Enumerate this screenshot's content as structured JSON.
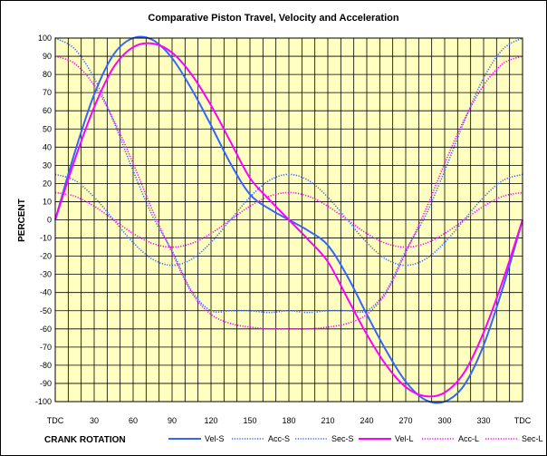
{
  "chart_data": {
    "type": "line",
    "title": "Comparative Piston Travel, Velocity and Acceleration",
    "xlabel": "CRANK ROTATION",
    "ylabel": "PERCENT",
    "xlim": [
      0,
      360
    ],
    "ylim": [
      -100,
      100
    ],
    "x_ticks": [
      {
        "value": 0,
        "label": "TDC"
      },
      {
        "value": 30,
        "label": "30"
      },
      {
        "value": 60,
        "label": "60"
      },
      {
        "value": 90,
        "label": "90"
      },
      {
        "value": 120,
        "label": "120"
      },
      {
        "value": 150,
        "label": "150"
      },
      {
        "value": 180,
        "label": "180"
      },
      {
        "value": 210,
        "label": "210"
      },
      {
        "value": 240,
        "label": "240"
      },
      {
        "value": 270,
        "label": "270"
      },
      {
        "value": 300,
        "label": "300"
      },
      {
        "value": 330,
        "label": "330"
      },
      {
        "value": 360,
        "label": "TDC"
      }
    ],
    "y_ticks": [
      100,
      90,
      80,
      70,
      60,
      50,
      40,
      30,
      20,
      10,
      0,
      -10,
      -20,
      -30,
      -40,
      -50,
      -60,
      -70,
      -80,
      -90,
      -100
    ],
    "grid": true,
    "legend_position": "bottom",
    "x": [
      0,
      15,
      30,
      45,
      60,
      75,
      90,
      105,
      120,
      135,
      150,
      165,
      180,
      195,
      210,
      225,
      240,
      255,
      270,
      285,
      300,
      315,
      330,
      345,
      360
    ],
    "series": [
      {
        "name": "Vel-S",
        "color": "#3366ff",
        "style": "solid",
        "values": [
          0,
          37,
          69,
          91,
          100,
          99,
          89,
          72,
          52,
          31,
          14,
          6,
          0,
          -6,
          -14,
          -31,
          -52,
          -72,
          -89,
          -99,
          -100,
          -91,
          -69,
          -37,
          0
        ]
      },
      {
        "name": "Acc-S",
        "color": "#3366ff",
        "style": "dotted",
        "values": [
          100,
          94,
          78,
          54,
          27,
          2,
          -17,
          -39,
          -50,
          -50,
          -50,
          -51,
          -50,
          -51,
          -50,
          -50,
          -50,
          -39,
          -17,
          2,
          27,
          54,
          78,
          94,
          100
        ]
      },
      {
        "name": "Sec-S",
        "color": "#3366ff",
        "style": "dotted",
        "values": [
          25,
          21.7,
          12.5,
          0,
          -12.5,
          -21.7,
          -25,
          -21.7,
          -12.5,
          0,
          12.5,
          21.7,
          25,
          21.7,
          12.5,
          0,
          -12.5,
          -21.7,
          -25,
          -21.7,
          -12.5,
          0,
          12.5,
          21.7,
          25
        ]
      },
      {
        "name": "Vel-L",
        "color": "#ff00ff",
        "style": "solid",
        "values": [
          0,
          33,
          62,
          84,
          95,
          97,
          92,
          80,
          63,
          43,
          23,
          11,
          0,
          -11,
          -23,
          -43,
          -63,
          -80,
          -92,
          -97,
          -95,
          -84,
          -62,
          -33,
          0
        ]
      },
      {
        "name": "Acc-L",
        "color": "#ff00ff",
        "style": "dotted",
        "values": [
          90,
          86,
          74,
          55,
          31,
          5,
          -18,
          -40,
          -52,
          -57,
          -59,
          -60,
          -60,
          -60,
          -59,
          -57,
          -52,
          -40,
          -18,
          5,
          31,
          55,
          74,
          86,
          90
        ]
      },
      {
        "name": "Sec-L",
        "color": "#ff00ff",
        "style": "dotted",
        "values": [
          15,
          13,
          7.5,
          0,
          -7.5,
          -13,
          -15,
          -13,
          -7.5,
          0,
          7.5,
          13,
          15,
          13,
          7.5,
          0,
          -7.5,
          -13,
          -15,
          -13,
          -7.5,
          0,
          7.5,
          13,
          15
        ]
      }
    ]
  }
}
